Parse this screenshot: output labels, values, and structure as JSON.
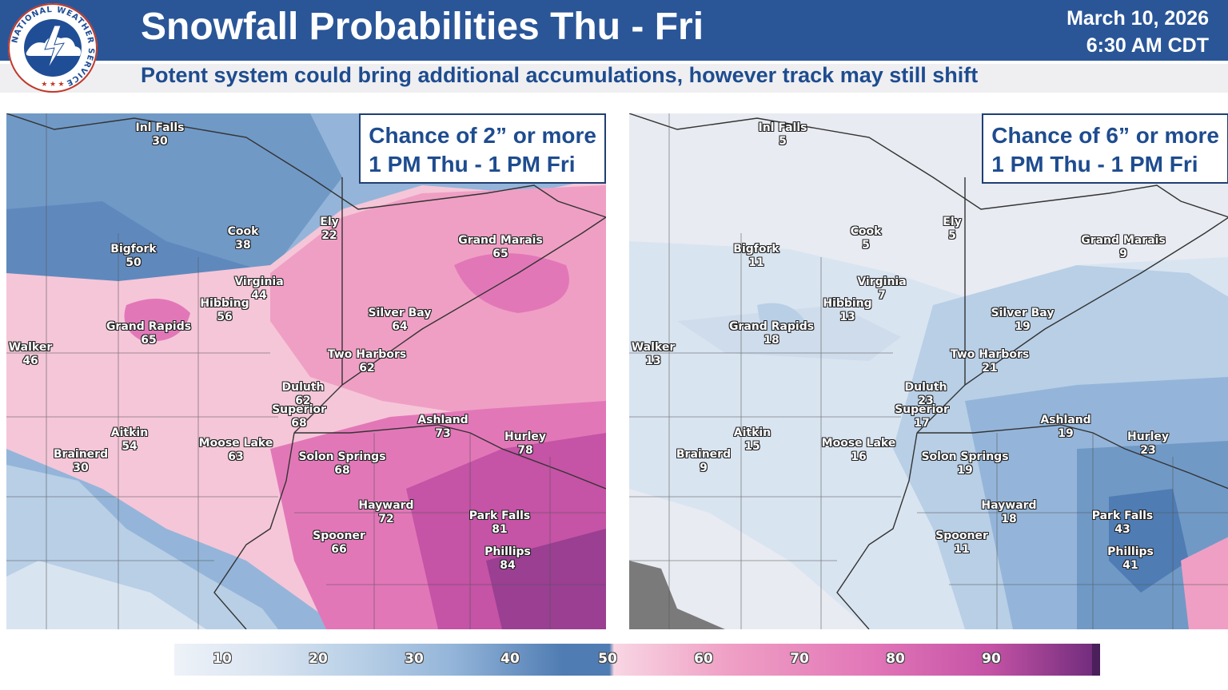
{
  "header": {
    "title": "Snowfall Probabilities Thu - Fri",
    "date": "March 10, 2026",
    "time": "6:30 AM CDT",
    "subtitle": "Potent system could bring additional accumulations, however track may still shift",
    "logo_text": "NATIONAL WEATHER SERVICE"
  },
  "colors": {
    "header_bg": "#2a5698",
    "subtitle_text": "#1e4c8f",
    "scale": [
      "#d9e4f1",
      "#b8cfe6",
      "#94b5d9",
      "#7099c6",
      "#4f7cb3",
      "#f5c6d8",
      "#ef9fc4",
      "#e277b8",
      "#c553a6",
      "#9a3f92"
    ]
  },
  "maps": [
    {
      "box_line1": "Chance of 2” or more",
      "box_line2": "1 PM Thu - 1 PM Fri",
      "cities": [
        {
          "name": "Inl Falls",
          "value": "30"
        },
        {
          "name": "Cook",
          "value": "38"
        },
        {
          "name": "Ely",
          "value": "22"
        },
        {
          "name": "Bigfork",
          "value": "50"
        },
        {
          "name": "Grand Marais",
          "value": "65"
        },
        {
          "name": "Virginia",
          "value": "44"
        },
        {
          "name": "Hibbing",
          "value": "56"
        },
        {
          "name": "Silver Bay",
          "value": "64"
        },
        {
          "name": "Grand Rapids",
          "value": "65"
        },
        {
          "name": "Walker",
          "value": "46"
        },
        {
          "name": "Two Harbors",
          "value": "62"
        },
        {
          "name": "Duluth",
          "value": "62"
        },
        {
          "name": "Superior",
          "value": "68"
        },
        {
          "name": "Ashland",
          "value": "73"
        },
        {
          "name": "Aitkin",
          "value": "54"
        },
        {
          "name": "Hurley",
          "value": "78"
        },
        {
          "name": "Brainerd",
          "value": "30"
        },
        {
          "name": "Moose Lake",
          "value": "63"
        },
        {
          "name": "Solon Springs",
          "value": "68"
        },
        {
          "name": "Hayward",
          "value": "72"
        },
        {
          "name": "Park Falls",
          "value": "81"
        },
        {
          "name": "Spooner",
          "value": "66"
        },
        {
          "name": "Phillips",
          "value": "84"
        }
      ]
    },
    {
      "box_line1": "Chance of 6” or more",
      "box_line2": "1 PM Thu - 1 PM Fri",
      "cities": [
        {
          "name": "Inl Falls",
          "value": "5"
        },
        {
          "name": "Cook",
          "value": "5"
        },
        {
          "name": "Ely",
          "value": "5"
        },
        {
          "name": "Bigfork",
          "value": "11"
        },
        {
          "name": "Grand Marais",
          "value": "9"
        },
        {
          "name": "Virginia",
          "value": "7"
        },
        {
          "name": "Hibbing",
          "value": "13"
        },
        {
          "name": "Silver Bay",
          "value": "19"
        },
        {
          "name": "Grand Rapids",
          "value": "18"
        },
        {
          "name": "Walker",
          "value": "13"
        },
        {
          "name": "Two Harbors",
          "value": "21"
        },
        {
          "name": "Duluth",
          "value": "23"
        },
        {
          "name": "Superior",
          "value": "17"
        },
        {
          "name": "Ashland",
          "value": "19"
        },
        {
          "name": "Aitkin",
          "value": "15"
        },
        {
          "name": "Hurley",
          "value": "23"
        },
        {
          "name": "Brainerd",
          "value": "9"
        },
        {
          "name": "Moose Lake",
          "value": "16"
        },
        {
          "name": "Solon Springs",
          "value": "19"
        },
        {
          "name": "Hayward",
          "value": "18"
        },
        {
          "name": "Park Falls",
          "value": "43"
        },
        {
          "name": "Spooner",
          "value": "11"
        },
        {
          "name": "Phillips",
          "value": "41"
        }
      ]
    }
  ],
  "legend": {
    "labels": [
      "10",
      "20",
      "30",
      "40",
      "50",
      "60",
      "70",
      "80",
      "90"
    ]
  }
}
